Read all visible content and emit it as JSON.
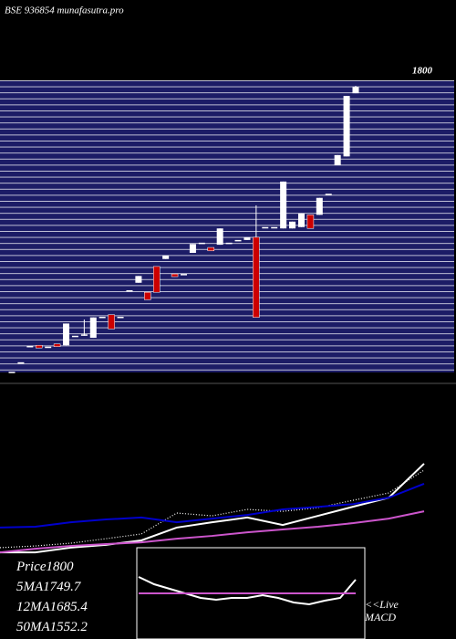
{
  "chart_data": [
    {
      "type": "candlestick",
      "title": "BSE 936854 munafasutra.pro",
      "last_price_label": "1800",
      "up_color": "#ffffff",
      "down_color": "#cc0000",
      "ylim": [
        1380,
        1810
      ],
      "categories": [
        null,
        null,
        null,
        null,
        null,
        null,
        null,
        null,
        null,
        null,
        null,
        null,
        null,
        null,
        null,
        null,
        null,
        null,
        null,
        null,
        null,
        null,
        null,
        null,
        null,
        null,
        null,
        null,
        null,
        null,
        null,
        null,
        null,
        null,
        null,
        null,
        null,
        null,
        null
      ],
      "open": [
        1381,
        1395,
        1419,
        1420,
        1418,
        1422,
        1420,
        1434,
        1434,
        1431,
        1462,
        1465,
        1462,
        1501,
        1512,
        1498,
        1536,
        1547,
        1525,
        1525,
        1556,
        1571,
        1564,
        1568,
        1571,
        1575,
        1575,
        1579,
        1594,
        1594,
        1592,
        1592,
        1594,
        1612,
        1612,
        1643,
        1685,
        1698,
        1791
      ],
      "high": [
        1381,
        1395,
        1419,
        1420,
        1418,
        1422,
        1452,
        1434,
        1458,
        1461,
        1462,
        1465,
        1462,
        1501,
        1522,
        1498,
        1536,
        1552,
        1525,
        1525,
        1569,
        1571,
        1564,
        1592,
        1571,
        1575,
        1579,
        1626,
        1594,
        1594,
        1661,
        1602,
        1614,
        1612,
        1637,
        1643,
        1700,
        1787,
        1802
      ],
      "low": [
        1381,
        1395,
        1419,
        1416,
        1418,
        1418,
        1420,
        1434,
        1434,
        1431,
        1462,
        1444,
        1462,
        1501,
        1512,
        1487,
        1498,
        1547,
        1521,
        1525,
        1556,
        1571,
        1559,
        1568,
        1571,
        1575,
        1575,
        1461,
        1594,
        1594,
        1592,
        1592,
        1594,
        1592,
        1612,
        1643,
        1685,
        1698,
        1791
      ],
      "close": [
        1381,
        1395,
        1419,
        1416,
        1418,
        1418,
        1452,
        1434,
        1436,
        1461,
        1462,
        1444,
        1462,
        1501,
        1522,
        1487,
        1498,
        1552,
        1521,
        1525,
        1569,
        1571,
        1559,
        1592,
        1571,
        1575,
        1579,
        1461,
        1594,
        1594,
        1661,
        1602,
        1614,
        1592,
        1637,
        1643,
        1700,
        1787,
        1800
      ]
    },
    {
      "type": "line",
      "ylim": [
        1350,
        1820
      ],
      "categories": [
        null,
        null,
        null,
        null,
        null,
        null,
        null,
        null,
        null,
        null,
        null,
        null,
        null
      ],
      "series": [
        {
          "name": "Price",
          "color": "#ffffff",
          "style": "solid",
          "last_value": 1800,
          "values": [
            1371,
            1371,
            1393,
            1406,
            1427,
            1487,
            1512,
            1534,
            1499,
            1542,
            1585,
            1627,
            1786
          ]
        },
        {
          "name": "5MA",
          "color": "#ffffff",
          "style": "dotted",
          "last_value": 1749.7,
          "values": [
            1393,
            1401,
            1414,
            1435,
            1457,
            1555,
            1542,
            1572,
            1563,
            1580,
            1615,
            1649,
            1756
          ]
        },
        {
          "name": "12MA",
          "color": "#0000cc",
          "style": "solid",
          "last_value": 1685.4,
          "values": [
            1487,
            1491,
            1512,
            1525,
            1534,
            1512,
            1529,
            1546,
            1572,
            1584,
            1597,
            1627,
            1692
          ]
        },
        {
          "name": "50MA",
          "color": "#cc55cc",
          "style": "solid",
          "last_value": 1552.2,
          "values": [
            1371,
            1388,
            1401,
            1410,
            1418,
            1435,
            1448,
            1465,
            1478,
            1491,
            1508,
            1529,
            1563
          ]
        }
      ]
    },
    {
      "type": "line",
      "title": "<<Live MACD",
      "ylim": [
        0,
        100
      ],
      "categories": [
        null,
        null,
        null,
        null,
        null,
        null,
        null,
        null,
        null,
        null,
        null,
        null,
        null,
        null,
        null
      ],
      "series": [
        {
          "color": "#ffffff",
          "values": [
            68,
            60,
            55,
            50,
            45,
            43,
            45,
            45,
            48,
            45,
            40,
            38,
            42,
            45,
            65
          ]
        },
        {
          "color": "#cc55cc",
          "values": [
            50,
            50,
            50,
            50,
            50,
            50,
            50,
            50,
            50,
            50,
            50,
            50,
            50,
            50,
            50
          ]
        }
      ]
    }
  ]
}
